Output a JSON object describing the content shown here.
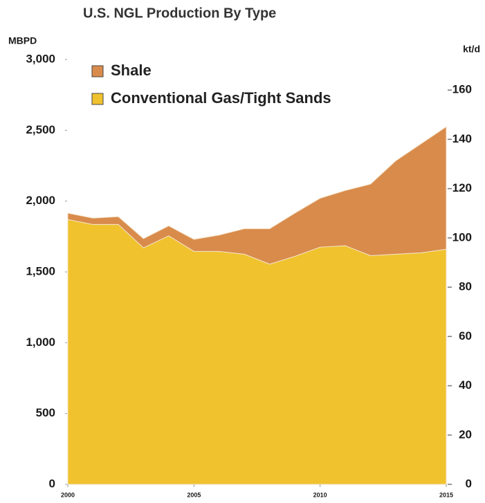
{
  "chart_data": {
    "type": "stacked_area",
    "title": "U.S. NGL Production By Type",
    "y_label": "MBPD",
    "y2_label": "kt/d",
    "x": [
      2000,
      2001,
      2002,
      2003,
      2004,
      2005,
      2006,
      2007,
      2008,
      2009,
      2010,
      2011,
      2012,
      2013,
      2014,
      2015
    ],
    "series": [
      {
        "name": "Conventional Gas/Tight Sands",
        "color": "#f0c22e",
        "values": [
          1870,
          1835,
          1835,
          1670,
          1755,
          1645,
          1645,
          1625,
          1555,
          1610,
          1675,
          1685,
          1615,
          1625,
          1635,
          1660
        ]
      },
      {
        "name": "Shale",
        "color": "#d98b4c",
        "values": [
          45,
          45,
          55,
          65,
          70,
          85,
          115,
          180,
          250,
          305,
          345,
          390,
          505,
          660,
          770,
          865
        ]
      }
    ],
    "xlim": [
      2000,
      2015
    ],
    "xticks": [
      2000,
      2005,
      2010,
      2015
    ],
    "ylim": [
      0,
      3000
    ],
    "yticks": [
      0,
      500,
      {
        "value": 1000,
        "label": "1,000"
      },
      {
        "value": 1500,
        "label": "1,500"
      },
      {
        "value": 2000,
        "label": "2,000"
      },
      {
        "value": 2500,
        "label": "2,500"
      },
      {
        "value": 3000,
        "label": "3,000"
      }
    ],
    "y2lim": [
      0,
      172.4
    ],
    "y2ticks": [
      0,
      20,
      40,
      60,
      80,
      100,
      120,
      140,
      160
    ],
    "grid": false
  }
}
